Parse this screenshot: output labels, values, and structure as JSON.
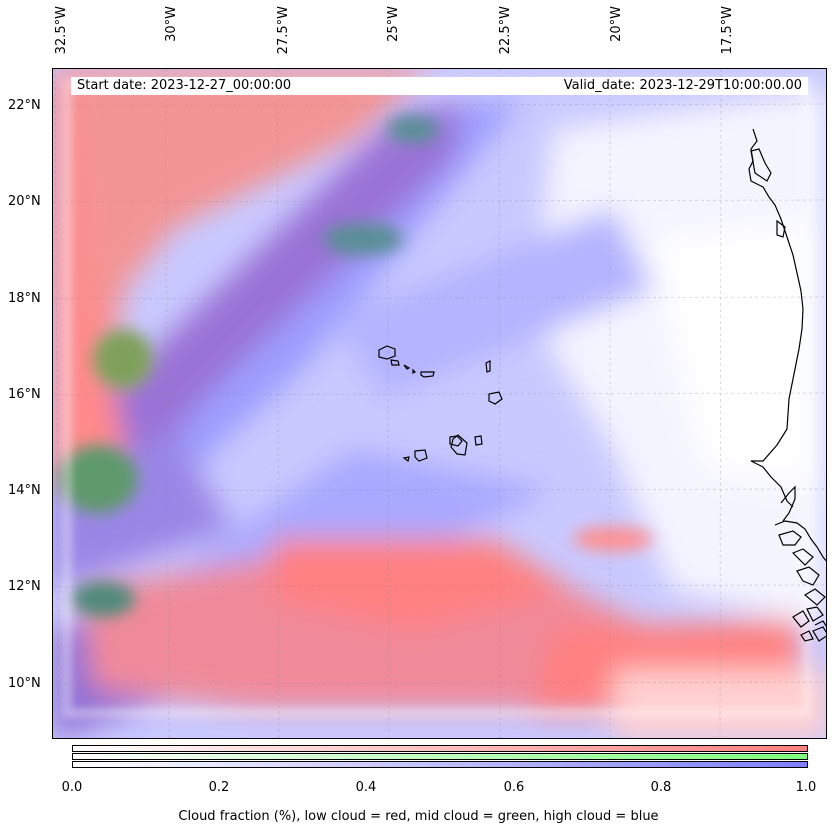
{
  "header": {
    "start_date": "Start date: 2023-12-27_00:00:00",
    "valid_date": "Valid_date: 2023-12-29T10:00:00.00"
  },
  "axes": {
    "longitudes": [
      "32.5°W",
      "30°W",
      "27.5°W",
      "25°W",
      "22.5°W",
      "20°W",
      "17.5°W"
    ],
    "latitudes": [
      "22°N",
      "20°N",
      "18°N",
      "16°N",
      "14°N",
      "12°N",
      "10°N"
    ]
  },
  "colorbar": {
    "ticks": [
      "0.0",
      "0.2",
      "0.4",
      "0.6",
      "0.8",
      "1.0"
    ],
    "label": "Cloud fraction (%), low cloud = red, mid cloud = green, high cloud = blue",
    "colors": {
      "low": "#ff7f7f",
      "mid": "#7fff7f",
      "high": "#7f7fff"
    }
  }
}
